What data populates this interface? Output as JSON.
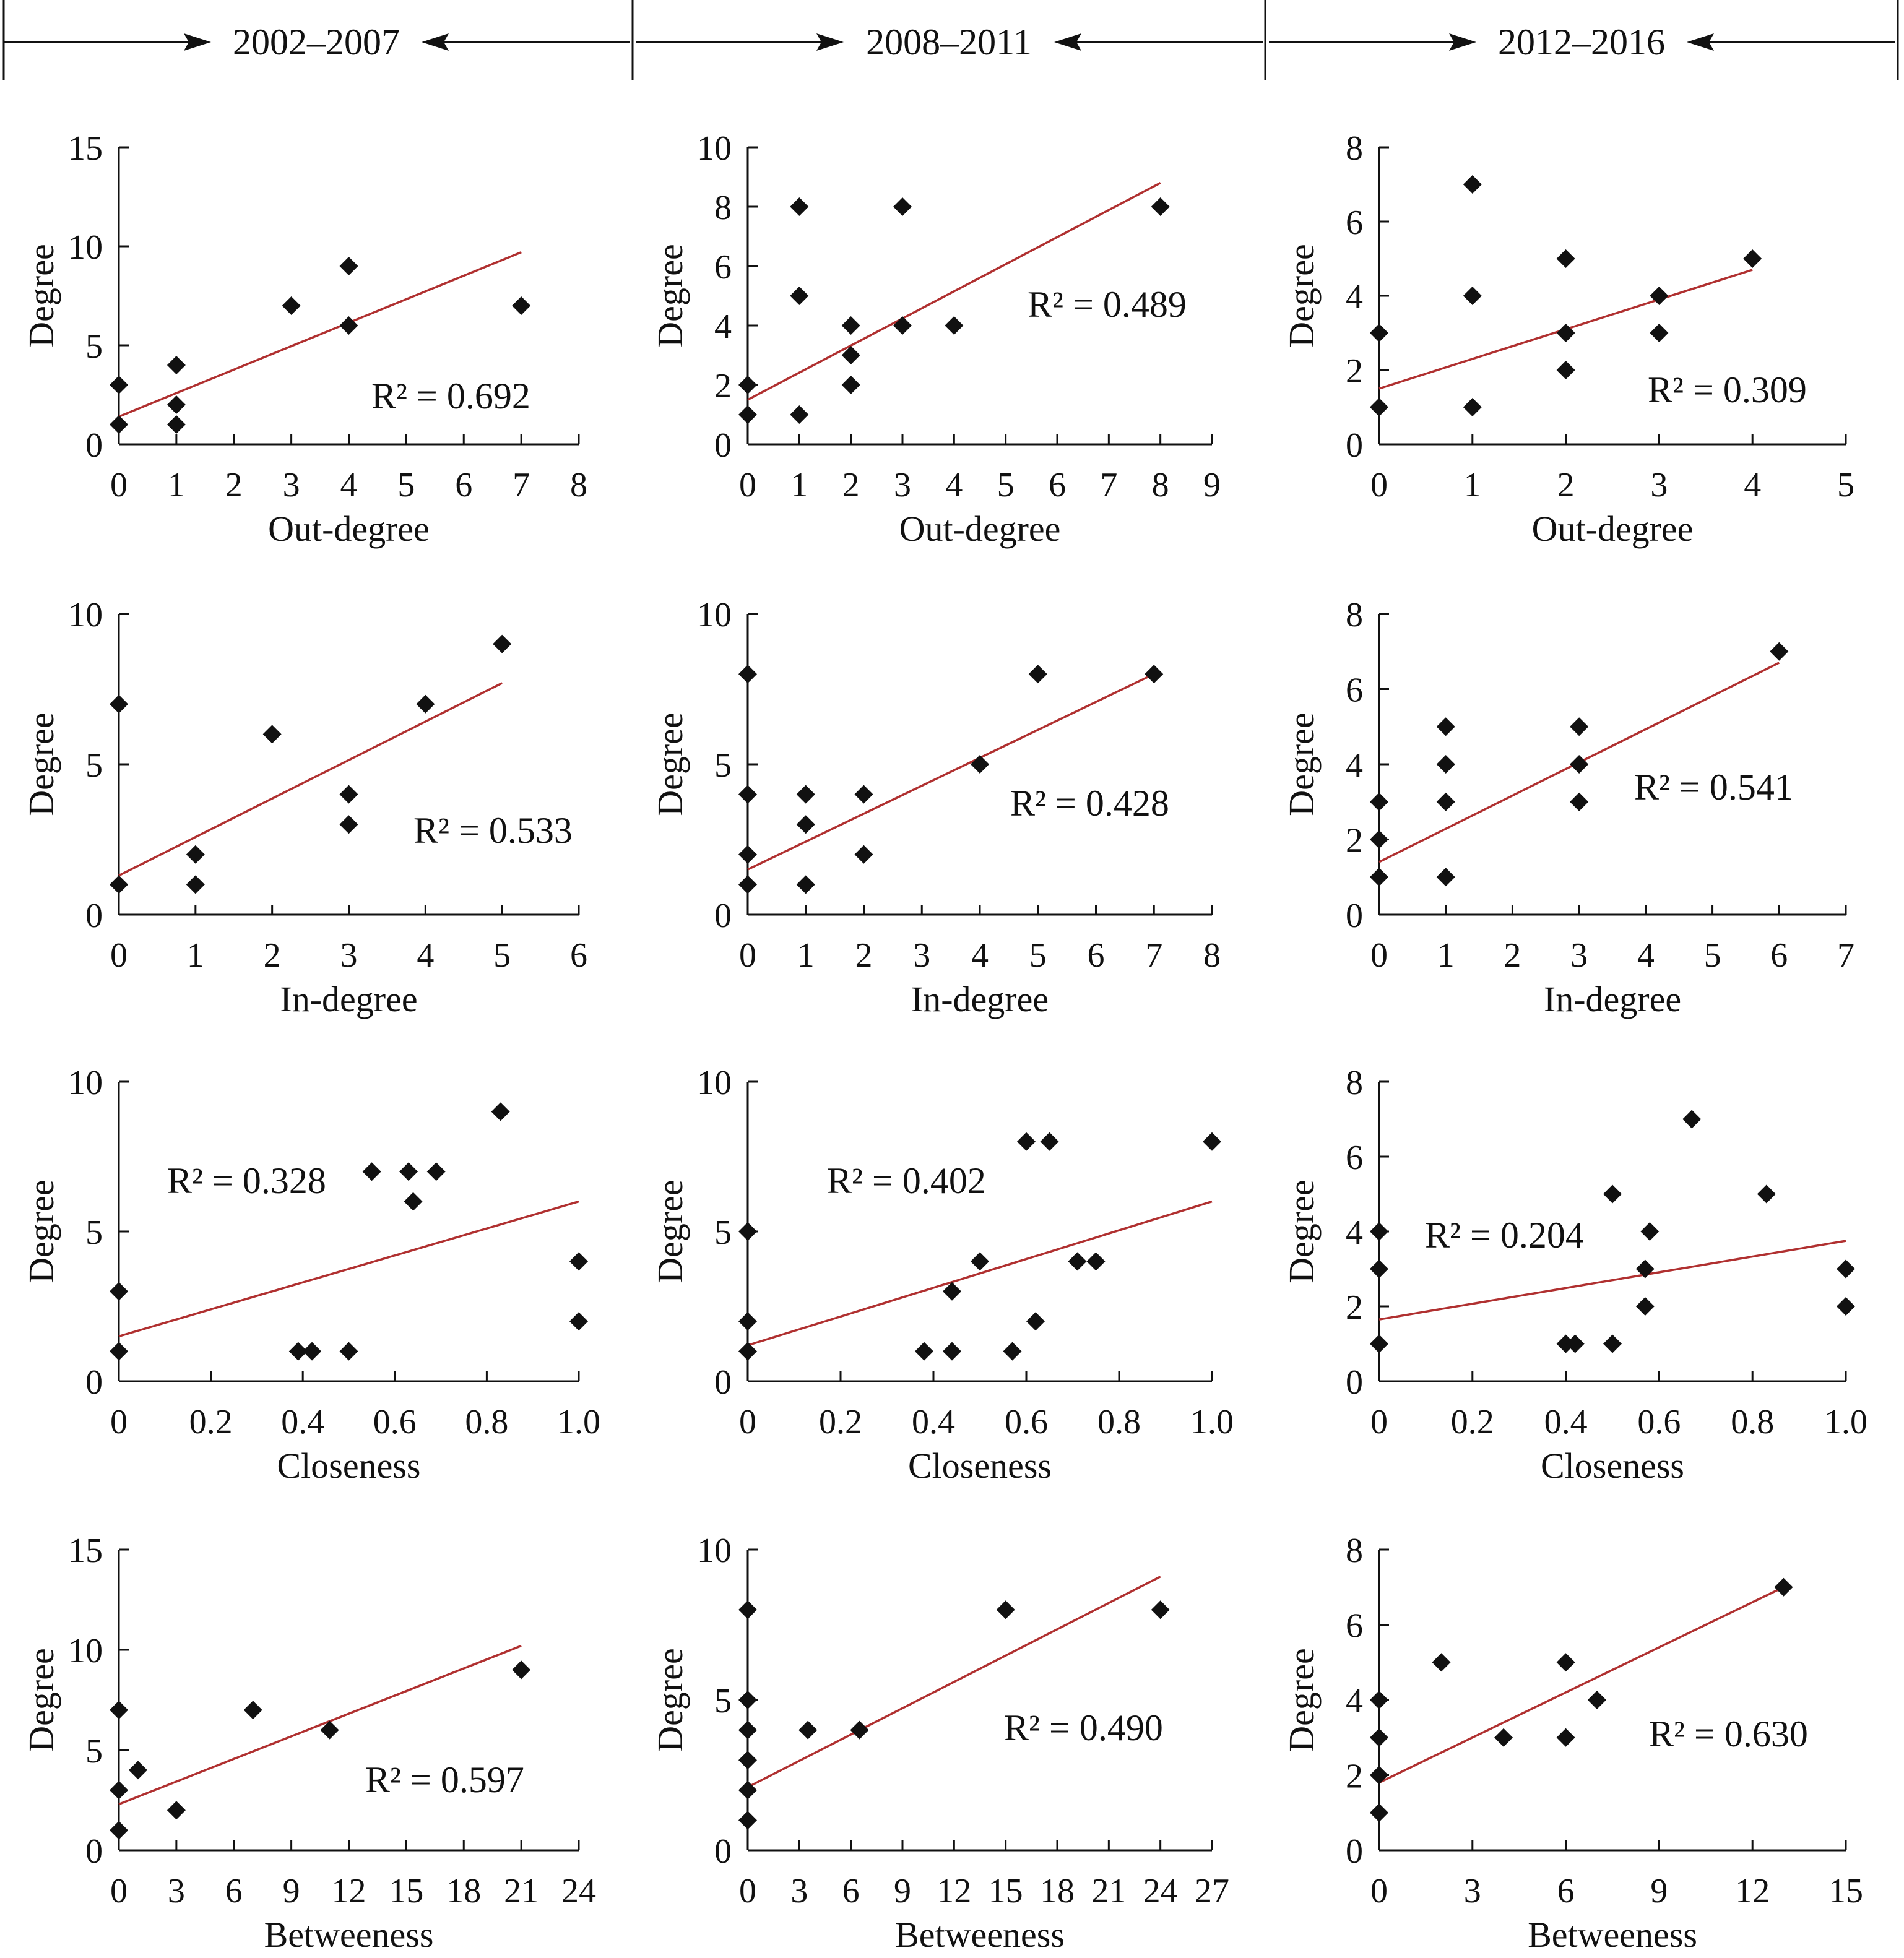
{
  "colors": {
    "marker": "#111111",
    "fit_line": "#b03030",
    "axis": "#111111"
  },
  "periods": [
    "2002–2007",
    "2008–2011",
    "2012–2016"
  ],
  "y_axis_label": "Degree",
  "chart_data": [
    {
      "type": "scatter",
      "period": "2002–2007",
      "xlabel": "Out-degree",
      "ylabel": "Degree",
      "xlim": [
        0,
        8
      ],
      "ylim": [
        0,
        15
      ],
      "xticks": [
        "0",
        "1",
        "2",
        "3",
        "4",
        "5",
        "6",
        "7",
        "8"
      ],
      "yticks": [
        "0",
        "5",
        "10",
        "15"
      ],
      "x": [
        0,
        0,
        1,
        1,
        1,
        3,
        4,
        4,
        7
      ],
      "y": [
        1,
        3,
        1,
        2,
        4,
        7,
        6,
        9,
        7
      ],
      "r2_label": "R² = 0.692",
      "fit": {
        "x": [
          0,
          7
        ],
        "y": [
          1.4,
          9.7
        ]
      }
    },
    {
      "type": "scatter",
      "period": "2008–2011",
      "xlabel": "Out-degree",
      "ylabel": "Degree",
      "xlim": [
        0,
        9
      ],
      "ylim": [
        0,
        10
      ],
      "xticks": [
        "0",
        "1",
        "2",
        "3",
        "4",
        "5",
        "6",
        "7",
        "8",
        "9"
      ],
      "yticks": [
        "0",
        "2",
        "4",
        "6",
        "8",
        "10"
      ],
      "x": [
        0,
        0,
        1,
        1,
        1,
        2,
        2,
        2,
        3,
        3,
        4,
        8
      ],
      "y": [
        1,
        2,
        1,
        5,
        8,
        2,
        3,
        4,
        4,
        8,
        4,
        8
      ],
      "r2_label": "R² = 0.489",
      "fit": {
        "x": [
          0,
          8
        ],
        "y": [
          1.5,
          8.8
        ]
      }
    },
    {
      "type": "scatter",
      "period": "2012–2016",
      "xlabel": "Out-degree",
      "ylabel": "Degree",
      "xlim": [
        0,
        5
      ],
      "ylim": [
        0,
        8
      ],
      "xticks": [
        "0",
        "1",
        "2",
        "3",
        "4",
        "5"
      ],
      "yticks": [
        "0",
        "2",
        "4",
        "6",
        "8"
      ],
      "x": [
        0,
        0,
        1,
        1,
        1,
        2,
        2,
        2,
        3,
        3,
        4
      ],
      "y": [
        1,
        3,
        1,
        4,
        7,
        2,
        3,
        5,
        3,
        4,
        5
      ],
      "r2_label": "R² = 0.309",
      "fit": {
        "x": [
          0,
          4
        ],
        "y": [
          1.5,
          4.7
        ]
      }
    },
    {
      "type": "scatter",
      "period": "2002–2007",
      "xlabel": "In-degree",
      "ylabel": "Degree",
      "xlim": [
        0,
        6
      ],
      "ylim": [
        0,
        10
      ],
      "xticks": [
        "0",
        "1",
        "2",
        "3",
        "4",
        "5",
        "6"
      ],
      "yticks": [
        "0",
        "5",
        "10"
      ],
      "x": [
        0,
        0,
        1,
        1,
        2,
        3,
        3,
        4,
        5
      ],
      "y": [
        1,
        7,
        1,
        2,
        6,
        3,
        4,
        7,
        9
      ],
      "r2_label": "R² = 0.533",
      "fit": {
        "x": [
          0,
          5
        ],
        "y": [
          1.3,
          7.7
        ]
      }
    },
    {
      "type": "scatter",
      "period": "2008–2011",
      "xlabel": "In-degree",
      "ylabel": "Degree",
      "xlim": [
        0,
        8
      ],
      "ylim": [
        0,
        10
      ],
      "xticks": [
        "0",
        "1",
        "2",
        "3",
        "4",
        "5",
        "6",
        "7",
        "8"
      ],
      "yticks": [
        "0",
        "5",
        "10"
      ],
      "x": [
        0,
        0,
        0,
        0,
        1,
        1,
        1,
        2,
        2,
        4,
        5,
        7
      ],
      "y": [
        1,
        2,
        4,
        8,
        1,
        3,
        4,
        2,
        4,
        5,
        8,
        8
      ],
      "r2_label": "R² = 0.428",
      "fit": {
        "x": [
          0,
          7
        ],
        "y": [
          1.5,
          8.0
        ]
      }
    },
    {
      "type": "scatter",
      "period": "2012–2016",
      "xlabel": "In-degree",
      "ylabel": "Degree",
      "xlim": [
        0,
        7
      ],
      "ylim": [
        0,
        8
      ],
      "xticks": [
        "0",
        "1",
        "2",
        "3",
        "4",
        "5",
        "6",
        "7"
      ],
      "yticks": [
        "0",
        "2",
        "4",
        "6",
        "8"
      ],
      "x": [
        0,
        0,
        0,
        1,
        1,
        1,
        1,
        3,
        3,
        3,
        6
      ],
      "y": [
        1,
        2,
        3,
        1,
        3,
        4,
        5,
        3,
        4,
        5,
        7
      ],
      "r2_label": "R² = 0.541",
      "fit": {
        "x": [
          0,
          6
        ],
        "y": [
          1.4,
          6.7
        ]
      }
    },
    {
      "type": "scatter",
      "period": "2002–2007",
      "xlabel": "Closeness",
      "ylabel": "Degree",
      "xlim": [
        0,
        1.0
      ],
      "ylim": [
        0,
        10
      ],
      "xticks": [
        "0",
        "0.2",
        "0.4",
        "0.6",
        "0.8",
        "1.0"
      ],
      "yticks": [
        "0",
        "5",
        "10"
      ],
      "x": [
        0,
        0,
        0.39,
        0.42,
        0.5,
        0.55,
        0.63,
        0.64,
        0.69,
        0.83,
        1.0,
        1.0
      ],
      "y": [
        1,
        3,
        1,
        1,
        1,
        7,
        7,
        6,
        7,
        9,
        2,
        4
      ],
      "r2_label": "R² = 0.328",
      "fit": {
        "x": [
          0,
          1.0
        ],
        "y": [
          1.5,
          6.0
        ]
      }
    },
    {
      "type": "scatter",
      "period": "2008–2011",
      "xlabel": "Closeness",
      "ylabel": "Degree",
      "xlim": [
        0,
        1.0
      ],
      "ylim": [
        0,
        10
      ],
      "xticks": [
        "0",
        "0.2",
        "0.4",
        "0.6",
        "0.8",
        "1.0"
      ],
      "yticks": [
        "0",
        "5",
        "10"
      ],
      "x": [
        0,
        0,
        0,
        0.38,
        0.44,
        0.44,
        0.5,
        0.57,
        0.6,
        0.62,
        0.65,
        0.71,
        0.75,
        1.0
      ],
      "y": [
        1,
        2,
        5,
        1,
        1,
        3,
        4,
        1,
        8,
        2,
        8,
        4,
        4,
        8
      ],
      "r2_label": "R² = 0.402",
      "fit": {
        "x": [
          0,
          1.0
        ],
        "y": [
          1.2,
          6.0
        ]
      }
    },
    {
      "type": "scatter",
      "period": "2012–2016",
      "xlabel": "Closeness",
      "ylabel": "Degree",
      "xlim": [
        0,
        1.0
      ],
      "ylim": [
        0,
        8
      ],
      "xticks": [
        "0",
        "0.2",
        "0.4",
        "0.6",
        "0.8",
        "1.0"
      ],
      "yticks": [
        "0",
        "2",
        "4",
        "6",
        "8"
      ],
      "x": [
        0,
        0,
        0,
        0.4,
        0.42,
        0.5,
        0.5,
        0.57,
        0.57,
        0.58,
        0.67,
        0.83,
        1.0,
        1.0
      ],
      "y": [
        1,
        3,
        4,
        1,
        1,
        1,
        5,
        2,
        3,
        4,
        7,
        5,
        2,
        3
      ],
      "r2_label": "R² = 0.204",
      "fit": {
        "x": [
          0,
          1.0
        ],
        "y": [
          1.65,
          3.75
        ]
      }
    },
    {
      "type": "scatter",
      "period": "2002–2007",
      "xlabel": "Betweeness",
      "ylabel": "Degree",
      "xlim": [
        0,
        24
      ],
      "ylim": [
        0,
        15
      ],
      "xticks": [
        "0",
        "3",
        "6",
        "9",
        "12",
        "15",
        "18",
        "21",
        "24"
      ],
      "yticks": [
        "0",
        "5",
        "10",
        "15"
      ],
      "x": [
        0,
        0,
        0,
        1,
        3,
        7,
        11,
        21
      ],
      "y": [
        1,
        3,
        7,
        4,
        2,
        7,
        6,
        9
      ],
      "r2_label": "R² = 0.597",
      "fit": {
        "x": [
          0,
          21
        ],
        "y": [
          2.3,
          10.2
        ]
      }
    },
    {
      "type": "scatter",
      "period": "2008–2011",
      "xlabel": "Betweeness",
      "ylabel": "Degree",
      "xlim": [
        0,
        27
      ],
      "ylim": [
        0,
        10
      ],
      "xticks": [
        "0",
        "3",
        "6",
        "9",
        "12",
        "15",
        "18",
        "21",
        "24",
        "27"
      ],
      "yticks": [
        "0",
        "5",
        "10"
      ],
      "x": [
        0,
        0,
        0,
        0,
        0,
        0,
        3.5,
        6.5,
        15,
        24
      ],
      "y": [
        1,
        2,
        3,
        4,
        5,
        8,
        4,
        4,
        8,
        8
      ],
      "r2_label": "R² = 0.490",
      "fit": {
        "x": [
          0,
          24
        ],
        "y": [
          2.1,
          9.1
        ]
      }
    },
    {
      "type": "scatter",
      "period": "2012–2016",
      "xlabel": "Betweeness",
      "ylabel": "Degree",
      "xlim": [
        0,
        15
      ],
      "ylim": [
        0,
        8
      ],
      "xticks": [
        "0",
        "3",
        "6",
        "9",
        "12",
        "15"
      ],
      "yticks": [
        "0",
        "2",
        "4",
        "6",
        "8"
      ],
      "x": [
        0,
        0,
        0,
        0,
        2,
        4,
        6,
        6,
        7,
        13
      ],
      "y": [
        1,
        2,
        3,
        4,
        5,
        3,
        3,
        5,
        4,
        7
      ],
      "r2_label": "R² = 0.630",
      "fit": {
        "x": [
          0,
          13
        ],
        "y": [
          1.8,
          7.0
        ]
      }
    }
  ]
}
